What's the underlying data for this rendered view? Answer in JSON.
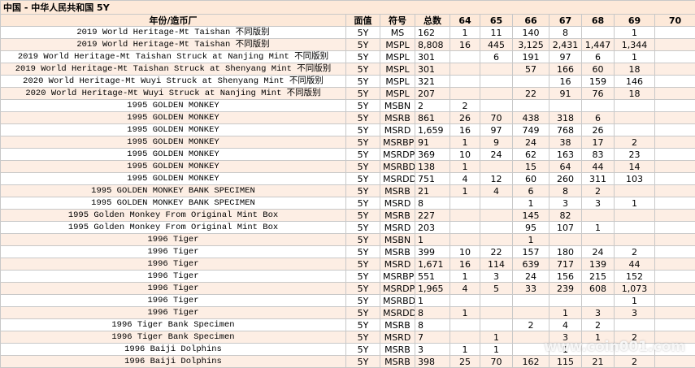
{
  "table": {
    "title": "中国 - 中华人民共和国 5Y",
    "header": [
      "年份/造币厂",
      "面值",
      "符号",
      "总数",
      "64",
      "65",
      "66",
      "67",
      "68",
      "69",
      "70"
    ],
    "rows": [
      [
        "2019 World Heritage-Mt Taishan 不同版别",
        "5Y",
        "MS",
        "162",
        "1",
        "11",
        "140",
        "8",
        null,
        "1",
        null
      ],
      [
        "2019 World Heritage-Mt Taishan 不同版别",
        "5Y",
        "MSPL",
        "8,808",
        "16",
        "445",
        "3,125",
        "2,431",
        "1,447",
        "1,344",
        null
      ],
      [
        "2019 World Heritage-Mt Taishan Struck at Nanjing Mint 不同版别",
        "5Y",
        "MSPL",
        "301",
        null,
        "6",
        "191",
        "97",
        "6",
        "1",
        null
      ],
      [
        "2019 World Heritage-Mt Taishan Struck at Shenyang Mint 不同版别",
        "5Y",
        "MSPL",
        "301",
        null,
        null,
        "57",
        "166",
        "60",
        "18",
        null
      ],
      [
        "2020 World Heritage-Mt Wuyi Struck at Shenyang Mint 不同版别",
        "5Y",
        "MSPL",
        "321",
        null,
        null,
        null,
        "16",
        "159",
        "146",
        null
      ],
      [
        "2020 World Heritage-Mt Wuyi Struck at Nanjing Mint 不同版别",
        "5Y",
        "MSPL",
        "207",
        null,
        null,
        "22",
        "91",
        "76",
        "18",
        null
      ],
      [
        "1995 GOLDEN MONKEY",
        "5Y",
        "MSBN",
        "2",
        "2",
        null,
        null,
        null,
        null,
        null,
        null
      ],
      [
        "1995 GOLDEN MONKEY",
        "5Y",
        "MSRB",
        "861",
        "26",
        "70",
        "438",
        "318",
        "6",
        null,
        null
      ],
      [
        "1995 GOLDEN MONKEY",
        "5Y",
        "MSRD",
        "1,659",
        "16",
        "97",
        "749",
        "768",
        "26",
        null,
        null
      ],
      [
        "1995 GOLDEN MONKEY",
        "5Y",
        "MSRBP",
        "91",
        "1",
        "9",
        "24",
        "38",
        "17",
        "2",
        null
      ],
      [
        "1995 GOLDEN MONKEY",
        "5Y",
        "MSRDP",
        "369",
        "10",
        "24",
        "62",
        "163",
        "83",
        "23",
        null
      ],
      [
        "1995 GOLDEN MONKEY",
        "5Y",
        "MSRBD",
        "138",
        "1",
        null,
        "15",
        "64",
        "44",
        "14",
        null
      ],
      [
        "1995 GOLDEN MONKEY",
        "5Y",
        "MSRDD",
        "751",
        "4",
        "12",
        "60",
        "260",
        "311",
        "103",
        null
      ],
      [
        "1995 GOLDEN MONKEY BANK SPECIMEN",
        "5Y",
        "MSRB",
        "21",
        "1",
        "4",
        "6",
        "8",
        "2",
        null,
        null
      ],
      [
        "1995 GOLDEN MONKEY BANK SPECIMEN",
        "5Y",
        "MSRD",
        "8",
        null,
        null,
        "1",
        "3",
        "3",
        "1",
        null
      ],
      [
        "1995 Golden Monkey From Original Mint Box",
        "5Y",
        "MSRB",
        "227",
        null,
        null,
        "145",
        "82",
        null,
        null,
        null
      ],
      [
        "1995 Golden Monkey From Original Mint Box",
        "5Y",
        "MSRD",
        "203",
        null,
        null,
        "95",
        "107",
        "1",
        null,
        null
      ],
      [
        "1996 Tiger",
        "5Y",
        "MSBN",
        "1",
        null,
        null,
        "1",
        null,
        null,
        null,
        null
      ],
      [
        "1996 Tiger",
        "5Y",
        "MSRB",
        "399",
        "10",
        "22",
        "157",
        "180",
        "24",
        "2",
        null
      ],
      [
        "1996 Tiger",
        "5Y",
        "MSRD",
        "1,671",
        "16",
        "114",
        "639",
        "717",
        "139",
        "44",
        null
      ],
      [
        "1996 Tiger",
        "5Y",
        "MSRBP",
        "551",
        "1",
        "3",
        "24",
        "156",
        "215",
        "152",
        null
      ],
      [
        "1996 Tiger",
        "5Y",
        "MSRDP",
        "1,965",
        "4",
        "5",
        "33",
        "239",
        "608",
        "1,073",
        null
      ],
      [
        "1996 Tiger",
        "5Y",
        "MSRBD",
        "1",
        null,
        null,
        null,
        null,
        null,
        "1",
        null
      ],
      [
        "1996 Tiger",
        "5Y",
        "MSRDD",
        "8",
        "1",
        null,
        null,
        "1",
        "3",
        "3",
        null
      ],
      [
        "1996 Tiger Bank Specimen",
        "5Y",
        "MSRB",
        "8",
        null,
        null,
        "2",
        "4",
        "2",
        null,
        null
      ],
      [
        "1996 Tiger Bank Specimen",
        "5Y",
        "MSRD",
        "7",
        null,
        "1",
        null,
        "3",
        "1",
        "2",
        null
      ],
      [
        "1996 Baiji Dolphins",
        "5Y",
        "MSRB",
        "3",
        "1",
        "1",
        null,
        "1",
        null,
        null,
        null
      ],
      [
        "1996 Baiji Dolphins",
        "5Y",
        "MSRB",
        "398",
        "25",
        "70",
        "162",
        "115",
        "21",
        "2",
        null
      ]
    ]
  },
  "watermark": "www.coin001.com"
}
